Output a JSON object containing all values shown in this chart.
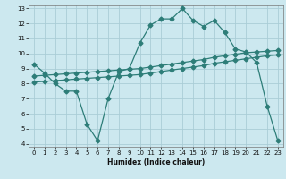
{
  "xlabel": "Humidex (Indice chaleur)",
  "bg_color": "#cce8ef",
  "grid_color": "#aacdd6",
  "line_color": "#2d7d78",
  "xlim_min": -0.5,
  "xlim_max": 23.5,
  "ylim_min": 3.8,
  "ylim_max": 13.2,
  "xticks": [
    0,
    1,
    2,
    3,
    4,
    5,
    6,
    7,
    8,
    9,
    10,
    11,
    12,
    13,
    14,
    15,
    16,
    17,
    18,
    19,
    20,
    21,
    22,
    23
  ],
  "yticks": [
    4,
    5,
    6,
    7,
    8,
    9,
    10,
    11,
    12,
    13
  ],
  "line1_x": [
    0,
    1,
    2,
    3,
    4,
    5,
    6,
    7,
    8,
    9,
    10,
    11,
    12,
    13,
    14,
    15,
    16,
    17,
    18,
    19,
    20,
    21,
    22,
    23
  ],
  "line1_y": [
    9.3,
    8.7,
    8.0,
    7.5,
    7.5,
    5.3,
    4.2,
    7.0,
    8.8,
    9.0,
    10.7,
    11.9,
    12.3,
    12.3,
    13.0,
    12.2,
    11.8,
    12.2,
    11.4,
    10.3,
    10.1,
    9.4,
    6.5,
    4.2
  ],
  "line2_x": [
    0,
    1,
    2,
    3,
    4,
    5,
    6,
    7,
    8,
    9,
    10,
    11,
    12,
    13,
    14,
    15,
    16,
    17,
    18,
    19,
    20,
    21,
    22,
    23
  ],
  "line2_y": [
    8.5,
    8.55,
    8.6,
    8.65,
    8.7,
    8.75,
    8.8,
    8.85,
    8.9,
    8.95,
    9.0,
    9.1,
    9.2,
    9.3,
    9.4,
    9.5,
    9.6,
    9.75,
    9.85,
    9.95,
    10.05,
    10.1,
    10.15,
    10.2
  ],
  "line3_x": [
    0,
    1,
    2,
    3,
    4,
    5,
    6,
    7,
    8,
    9,
    10,
    11,
    12,
    13,
    14,
    15,
    16,
    17,
    18,
    19,
    20,
    21,
    22,
    23
  ],
  "line3_y": [
    8.1,
    8.15,
    8.2,
    8.25,
    8.3,
    8.35,
    8.4,
    8.45,
    8.5,
    8.55,
    8.6,
    8.7,
    8.8,
    8.9,
    9.0,
    9.1,
    9.2,
    9.35,
    9.45,
    9.55,
    9.65,
    9.75,
    9.85,
    9.9
  ]
}
